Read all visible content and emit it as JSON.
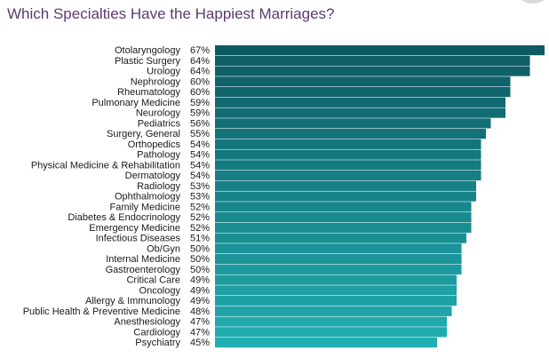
{
  "page": {
    "title": "Which Specialties Have the Happiest Marriages?"
  },
  "chart_data": {
    "type": "bar",
    "orientation": "horizontal",
    "title": "Which Specialties Have the Happiest Marriages?",
    "xlabel": "",
    "ylabel": "",
    "grid": false,
    "legend": "none",
    "value_unit": "%",
    "colors": {
      "top": "#0e5a63",
      "bottom": "#21aeb1"
    },
    "categories": [
      "Otolaryngology",
      "Plastic Surgery",
      "Urology",
      "Nephrology",
      "Rheumatology",
      "Pulmonary Medicine",
      "Neurology",
      "Pediatrics",
      "Surgery, General",
      "Orthopedics",
      "Pathology",
      "Physical Medicine & Rehabilitation",
      "Dermatology",
      "Radiology",
      "Ophthalmology",
      "Family Medicine",
      "Diabetes & Endocrinology",
      "Emergency Medicine",
      "Infectious Diseases",
      "Ob/Gyn",
      "Internal Medicine",
      "Gastroenterology",
      "Critical Care",
      "Oncology",
      "Allergy & Immunology",
      "Public Health & Preventive Medicine",
      "Anesthesiology",
      "Cardiology",
      "Psychiatry"
    ],
    "values": [
      67,
      64,
      64,
      60,
      60,
      59,
      59,
      56,
      55,
      54,
      54,
      54,
      54,
      53,
      53,
      52,
      52,
      52,
      51,
      50,
      50,
      50,
      49,
      49,
      49,
      48,
      47,
      47,
      45
    ],
    "value_labels": [
      "67%",
      "64%",
      "64%",
      "60%",
      "60%",
      "59%",
      "59%",
      "56%",
      "55%",
      "54%",
      "54%",
      "54%",
      "54%",
      "53%",
      "53%",
      "52%",
      "52%",
      "52%",
      "51%",
      "50%",
      "50%",
      "50%",
      "49%",
      "49%",
      "49%",
      "48%",
      "47%",
      "47%",
      "45%"
    ]
  }
}
